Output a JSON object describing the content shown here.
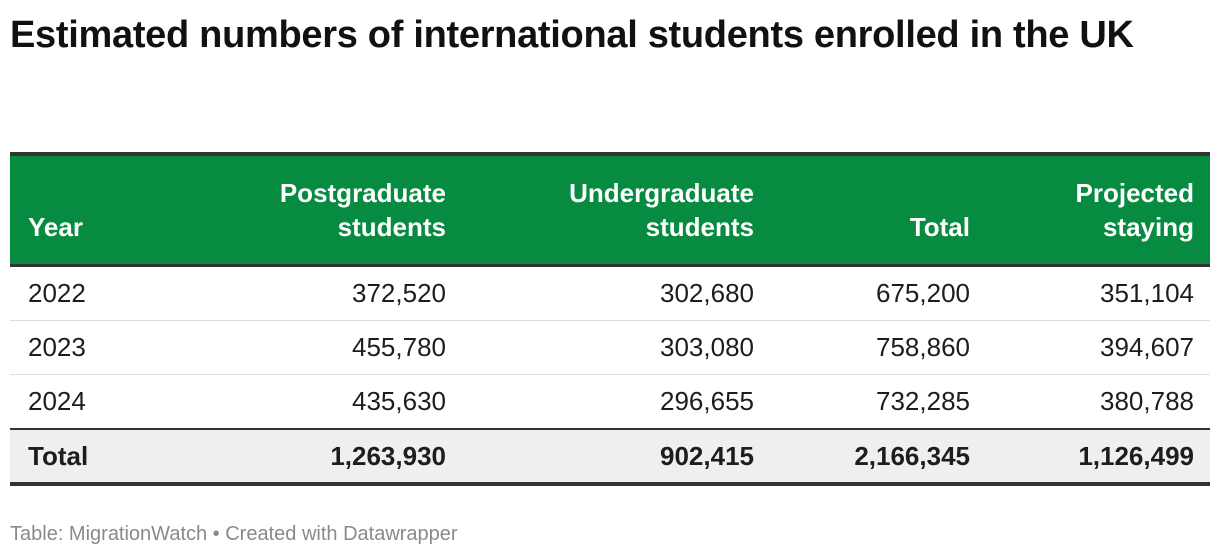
{
  "header": {
    "title": "Estimated numbers of international students enrolled in the UK"
  },
  "table": {
    "columns": [
      "Year",
      "Postgraduate students",
      "Undergraduate students",
      "Total",
      "Projected staying"
    ],
    "rows": [
      [
        "2022",
        "372,520",
        "302,680",
        "675,200",
        "351,104"
      ],
      [
        "2023",
        "455,780",
        "303,080",
        "758,860",
        "394,607"
      ],
      [
        "2024",
        "435,630",
        "296,655",
        "732,285",
        "380,788"
      ]
    ],
    "total_row": [
      "Total",
      "1,263,930",
      "902,415",
      "2,166,345",
      "1,126,499"
    ]
  },
  "footer": {
    "source": "Table: MigrationWatch • Created with Datawrapper"
  }
}
